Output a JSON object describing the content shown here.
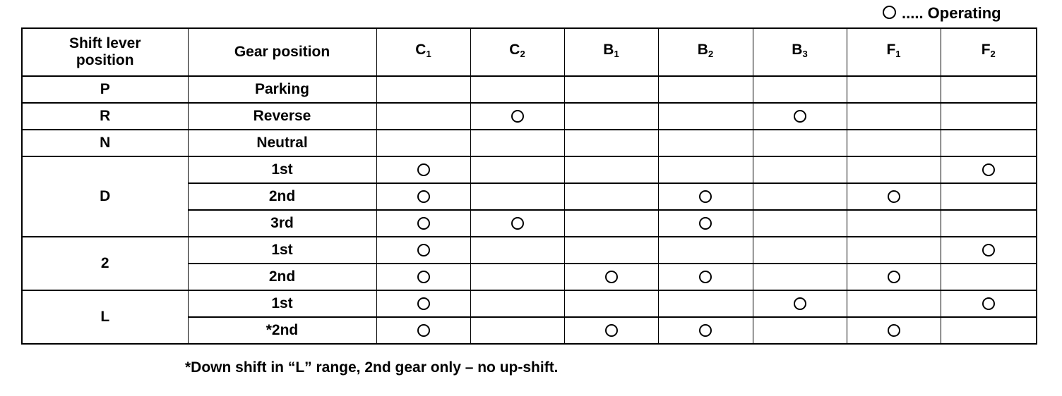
{
  "legend": {
    "symbol": "circle-icon",
    "text": "..... Operating"
  },
  "headers": {
    "shift_lever": "Shift lever position",
    "gear_position": "Gear position",
    "elements": [
      {
        "letter": "C",
        "sub": "1"
      },
      {
        "letter": "C",
        "sub": "2"
      },
      {
        "letter": "B",
        "sub": "1"
      },
      {
        "letter": "B",
        "sub": "2"
      },
      {
        "letter": "B",
        "sub": "3"
      },
      {
        "letter": "F",
        "sub": "1"
      },
      {
        "letter": "F",
        "sub": "2"
      }
    ]
  },
  "groups": [
    {
      "lever": "P",
      "rows": [
        {
          "gear": "Parking",
          "operating": [
            false,
            false,
            false,
            false,
            false,
            false,
            false
          ]
        }
      ]
    },
    {
      "lever": "R",
      "rows": [
        {
          "gear": "Reverse",
          "operating": [
            false,
            true,
            false,
            false,
            true,
            false,
            false
          ]
        }
      ]
    },
    {
      "lever": "N",
      "rows": [
        {
          "gear": "Neutral",
          "operating": [
            false,
            false,
            false,
            false,
            false,
            false,
            false
          ]
        }
      ]
    },
    {
      "lever": "D",
      "rows": [
        {
          "gear": "1st",
          "operating": [
            true,
            false,
            false,
            false,
            false,
            false,
            true
          ]
        },
        {
          "gear": "2nd",
          "operating": [
            true,
            false,
            false,
            true,
            false,
            true,
            false
          ]
        },
        {
          "gear": "3rd",
          "operating": [
            true,
            true,
            false,
            true,
            false,
            false,
            false
          ]
        }
      ]
    },
    {
      "lever": "2",
      "rows": [
        {
          "gear": "1st",
          "operating": [
            true,
            false,
            false,
            false,
            false,
            false,
            true
          ]
        },
        {
          "gear": "2nd",
          "operating": [
            true,
            false,
            true,
            true,
            false,
            true,
            false
          ]
        }
      ]
    },
    {
      "lever": "L",
      "rows": [
        {
          "gear": "1st",
          "operating": [
            true,
            false,
            false,
            false,
            true,
            false,
            true
          ]
        },
        {
          "gear": "*2nd",
          "operating": [
            true,
            false,
            true,
            true,
            false,
            true,
            false
          ]
        }
      ]
    }
  ],
  "footnote": "*Down shift in “L” range, 2nd gear only – no up-shift."
}
